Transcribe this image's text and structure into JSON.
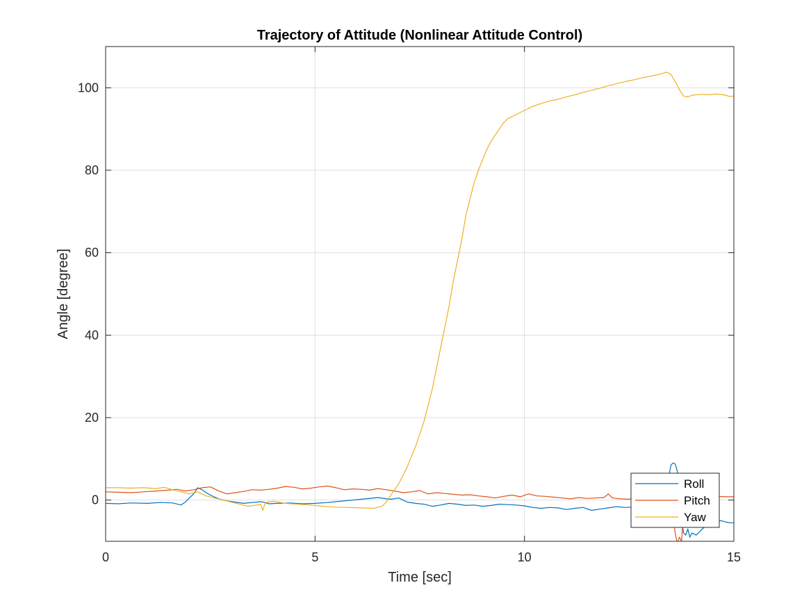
{
  "chart_data": {
    "type": "line",
    "title": "Trajectory of Attitude (Nonlinear Attitude Control)",
    "xlabel": "Time [sec]",
    "ylabel": "Angle [degree]",
    "xlim": [
      0,
      15
    ],
    "ylim": [
      -10,
      110
    ],
    "xticks": [
      0,
      5,
      10,
      15
    ],
    "yticks": [
      0,
      20,
      40,
      60,
      80,
      100
    ],
    "grid": true,
    "legend_position": "bottom-right",
    "series": [
      {
        "name": "Roll",
        "color": "#0072BD",
        "x": [
          0,
          0.3,
          0.6,
          1.0,
          1.3,
          1.6,
          1.8,
          1.9,
          2.0,
          2.1,
          2.2,
          2.3,
          2.4,
          2.5,
          2.7,
          2.9,
          3.1,
          3.3,
          3.5,
          3.7,
          3.8,
          3.9,
          4.1,
          4.4,
          4.7,
          5.0,
          5.3,
          5.6,
          5.9,
          6.2,
          6.5,
          6.8,
          7.0,
          7.2,
          7.4,
          7.6,
          7.8,
          8.0,
          8.2,
          8.4,
          8.6,
          8.8,
          9.0,
          9.2,
          9.4,
          9.6,
          9.8,
          10.0,
          10.2,
          10.4,
          10.6,
          10.8,
          11.0,
          11.2,
          11.4,
          11.6,
          11.8,
          12.0,
          12.2,
          12.4,
          12.6,
          12.8,
          13.0,
          13.2,
          13.3,
          13.4,
          13.45,
          13.5,
          13.55,
          13.6,
          13.65,
          13.7,
          13.75,
          13.8,
          13.85,
          13.9,
          13.95,
          14.0,
          14.1,
          14.2,
          14.3,
          14.4,
          14.5,
          14.6,
          14.7,
          14.8,
          14.9,
          15.0
        ],
        "values": [
          -0.8,
          -0.9,
          -0.7,
          -0.8,
          -0.6,
          -0.7,
          -1.2,
          -0.5,
          0.5,
          1.5,
          3.0,
          2.5,
          1.8,
          1.2,
          0.3,
          -0.2,
          -0.5,
          -0.8,
          -0.6,
          -0.4,
          -0.6,
          -0.9,
          -0.8,
          -0.7,
          -0.9,
          -0.8,
          -0.6,
          -0.3,
          0.0,
          0.3,
          0.6,
          0.2,
          0.5,
          -0.5,
          -0.8,
          -1.0,
          -1.5,
          -1.2,
          -0.8,
          -1.0,
          -1.3,
          -1.2,
          -1.5,
          -1.3,
          -1.0,
          -1.1,
          -1.2,
          -1.4,
          -1.8,
          -2.0,
          -1.8,
          -1.9,
          -2.3,
          -2.0,
          -1.8,
          -2.5,
          -2.2,
          -1.9,
          -1.6,
          -1.8,
          -1.7,
          -1.5,
          -2.0,
          -3.0,
          -2.5,
          -2.2,
          6.0,
          8.5,
          9.0,
          8.8,
          7.0,
          0.0,
          -5.0,
          -8.0,
          -8.5,
          -7.0,
          -9.0,
          -8.0,
          -8.5,
          -7.5,
          -6.5,
          -6.0,
          -5.5,
          -5.2,
          -5.0,
          -5.3,
          -5.5,
          -5.5
        ]
      },
      {
        "name": "Pitch",
        "color": "#D95319",
        "x": [
          0,
          0.3,
          0.6,
          0.9,
          1.2,
          1.5,
          1.7,
          1.9,
          2.1,
          2.3,
          2.5,
          2.7,
          2.9,
          3.1,
          3.3,
          3.5,
          3.7,
          3.9,
          4.1,
          4.3,
          4.5,
          4.7,
          4.9,
          5.1,
          5.3,
          5.5,
          5.7,
          5.9,
          6.1,
          6.3,
          6.5,
          6.7,
          6.9,
          7.1,
          7.3,
          7.5,
          7.7,
          7.9,
          8.1,
          8.3,
          8.5,
          8.7,
          8.9,
          9.1,
          9.3,
          9.5,
          9.7,
          9.9,
          10.1,
          10.3,
          10.5,
          10.7,
          10.9,
          11.1,
          11.3,
          11.5,
          11.7,
          11.9,
          12.0,
          12.1,
          12.3,
          12.5,
          12.7,
          12.9,
          13.1,
          13.3,
          13.5,
          13.6,
          13.65,
          13.7,
          13.75,
          13.8,
          13.9,
          14.0,
          14.2,
          14.4,
          14.6,
          14.8,
          15.0
        ],
        "values": [
          2.0,
          1.9,
          1.8,
          2.0,
          2.2,
          2.4,
          2.6,
          2.2,
          2.5,
          3.0,
          3.2,
          2.2,
          1.5,
          1.8,
          2.1,
          2.5,
          2.4,
          2.6,
          2.9,
          3.3,
          3.1,
          2.7,
          2.9,
          3.2,
          3.4,
          3.0,
          2.5,
          2.7,
          2.6,
          2.4,
          2.8,
          2.5,
          2.2,
          1.8,
          2.0,
          2.3,
          1.5,
          1.8,
          1.6,
          1.4,
          1.2,
          1.3,
          1.0,
          0.8,
          0.5,
          0.9,
          1.2,
          0.8,
          1.5,
          1.0,
          0.9,
          0.7,
          0.5,
          0.3,
          0.6,
          0.4,
          0.5,
          0.6,
          1.5,
          0.5,
          0.3,
          0.2,
          0.8,
          0.5,
          0.3,
          0.4,
          0.0,
          -8.0,
          -10.5,
          -9.0,
          -10.0,
          -3.0,
          0.5,
          0.8,
          0.7,
          0.8,
          0.9,
          0.8,
          0.8
        ]
      },
      {
        "name": "Yaw",
        "color": "#EDB120",
        "x": [
          0,
          0.3,
          0.6,
          0.9,
          1.2,
          1.4,
          1.6,
          1.8,
          2.0,
          2.2,
          2.4,
          2.6,
          2.8,
          3.0,
          3.2,
          3.4,
          3.6,
          3.7,
          3.75,
          3.8,
          3.85,
          4.0,
          4.3,
          4.6,
          4.9,
          5.2,
          5.5,
          5.8,
          6.1,
          6.4,
          6.6,
          6.7,
          6.8,
          6.9,
          7.0,
          7.1,
          7.2,
          7.3,
          7.4,
          7.5,
          7.6,
          7.7,
          7.8,
          7.9,
          8.0,
          8.1,
          8.2,
          8.3,
          8.4,
          8.5,
          8.6,
          8.7,
          8.8,
          8.9,
          9.0,
          9.1,
          9.2,
          9.3,
          9.4,
          9.5,
          9.6,
          9.7,
          9.8,
          9.9,
          10.0,
          10.2,
          10.4,
          10.6,
          10.8,
          11.0,
          11.2,
          11.4,
          11.6,
          11.8,
          12.0,
          12.2,
          12.4,
          12.6,
          12.8,
          13.0,
          13.1,
          13.2,
          13.3,
          13.4,
          13.5,
          13.6,
          13.7,
          13.8,
          13.9,
          14.0,
          14.2,
          14.4,
          14.6,
          14.8,
          14.9,
          15.0
        ],
        "values": [
          3.0,
          3.0,
          2.9,
          3.0,
          2.8,
          3.1,
          2.5,
          2.0,
          1.5,
          2.0,
          1.0,
          0.5,
          0.0,
          -0.5,
          -1.0,
          -1.5,
          -1.2,
          -1.0,
          -2.5,
          -1.0,
          -0.5,
          -0.3,
          -0.8,
          -1.0,
          -1.2,
          -1.5,
          -1.7,
          -1.8,
          -1.9,
          -2.0,
          -1.5,
          -0.5,
          1.0,
          2.5,
          4.0,
          6.0,
          8.0,
          10.5,
          13.0,
          16.0,
          19.0,
          23.0,
          27.0,
          32.0,
          37.0,
          42.0,
          47.0,
          53.0,
          58.0,
          63.0,
          69.0,
          73.0,
          77.0,
          80.0,
          82.5,
          85.0,
          87.0,
          88.5,
          90.0,
          91.5,
          92.5,
          93.0,
          93.5,
          94.0,
          94.5,
          95.5,
          96.2,
          96.8,
          97.2,
          97.8,
          98.3,
          98.9,
          99.4,
          99.9,
          100.5,
          101.0,
          101.5,
          101.9,
          102.4,
          102.8,
          103.0,
          103.2,
          103.5,
          103.8,
          103.2,
          101.5,
          99.5,
          98.0,
          97.8,
          98.2,
          98.4,
          98.3,
          98.5,
          98.2,
          97.9,
          98.0
        ]
      }
    ]
  }
}
